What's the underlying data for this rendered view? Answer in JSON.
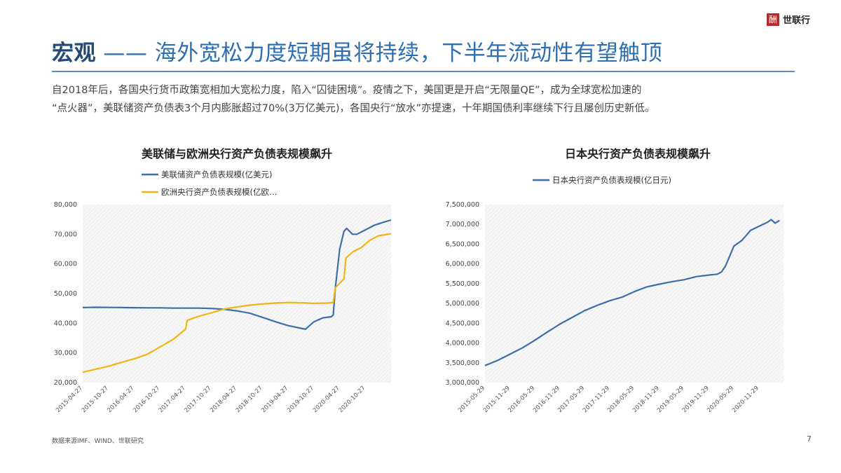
{
  "header": {
    "logo_mark": "酬",
    "logo_text": "世联行",
    "title_main": "宏观",
    "title_rest": " —— 海外宽松力度短期虽将持续，下半年流动性有望触顶"
  },
  "intro": {
    "line1": "自2018年后，各国央行货币政策宽相加大宽松力度，陷入“囚徒困境”。疫情之下，美国更是开启“无限量QE”，成为全球宽松加速的",
    "line2": "“点火器”，美联储资产负债表3个月内膨胀超过70%(3万亿美元)，各国央行“放水”亦提速，十年期国债利率继续下行且屡创历史新低。"
  },
  "footer": {
    "source": "数据来源IMF、WIND、世联研究",
    "page": "7"
  },
  "colors": {
    "fed": "#3d6ea8",
    "ecb": "#f2b313",
    "boj": "#3d6ea8",
    "title_dark": "#244a73",
    "title_light": "#2d6fb0"
  },
  "chart_data": [
    {
      "type": "line",
      "title": "美联储与欧洲央行资产负债表规模飙升",
      "legend_position": "top",
      "ylim": [
        20000,
        80000
      ],
      "y_ticks": [
        "20,000",
        "30,000",
        "40,000",
        "50,000",
        "60,000",
        "70,000",
        "80,000"
      ],
      "x_ticks": [
        "2015-04-27",
        "2015-10-27",
        "2016-04-27",
        "2016-10-27",
        "2017-04-27",
        "2017-10-27",
        "2018-04-27",
        "2018-10-27",
        "2019-04-27",
        "2019-10-27",
        "2020-04-27",
        "2020-10-27"
      ],
      "x_range": [
        "2015-04-27",
        "2021-04-27"
      ],
      "series": [
        {
          "name": "美联储资产负债表规模(亿美元)",
          "points": [
            [
              "2015-04-27",
              45300
            ],
            [
              "2015-07-27",
              45400
            ],
            [
              "2015-10-27",
              45350
            ],
            [
              "2016-01-27",
              45300
            ],
            [
              "2016-04-27",
              45250
            ],
            [
              "2016-07-27",
              45200
            ],
            [
              "2016-10-27",
              45200
            ],
            [
              "2017-01-27",
              45100
            ],
            [
              "2017-04-27",
              45100
            ],
            [
              "2017-07-27",
              45100
            ],
            [
              "2017-10-27",
              45000
            ],
            [
              "2018-01-27",
              44700
            ],
            [
              "2018-04-27",
              44200
            ],
            [
              "2018-07-27",
              43400
            ],
            [
              "2018-10-27",
              42000
            ],
            [
              "2019-01-27",
              40500
            ],
            [
              "2019-04-27",
              39200
            ],
            [
              "2019-07-27",
              38300
            ],
            [
              "2019-08-27",
              38000
            ],
            [
              "2019-10-27",
              40500
            ],
            [
              "2019-12-27",
              41800
            ],
            [
              "2020-02-27",
              42200
            ],
            [
              "2020-03-12",
              42800
            ],
            [
              "2020-03-27",
              52000
            ],
            [
              "2020-04-27",
              65000
            ],
            [
              "2020-05-27",
              71000
            ],
            [
              "2020-06-15",
              72000
            ],
            [
              "2020-07-27",
              70000
            ],
            [
              "2020-08-27",
              70000
            ],
            [
              "2020-10-27",
              71500
            ],
            [
              "2020-12-27",
              73000
            ],
            [
              "2021-02-27",
              74000
            ],
            [
              "2021-04-27",
              74800
            ]
          ]
        },
        {
          "name": "欧洲央行资产负债表规模(亿欧…",
          "points": [
            [
              "2015-04-27",
              23500
            ],
            [
              "2015-07-27",
              24500
            ],
            [
              "2015-10-27",
              25500
            ],
            [
              "2016-01-27",
              26800
            ],
            [
              "2016-04-27",
              28000
            ],
            [
              "2016-07-27",
              29500
            ],
            [
              "2016-10-27",
              32000
            ],
            [
              "2017-01-27",
              34500
            ],
            [
              "2017-04-27",
              38000
            ],
            [
              "2017-05-10",
              41000
            ],
            [
              "2017-07-27",
              42300
            ],
            [
              "2017-10-27",
              43500
            ],
            [
              "2018-01-27",
              44800
            ],
            [
              "2018-04-27",
              45500
            ],
            [
              "2018-07-27",
              46100
            ],
            [
              "2018-10-27",
              46500
            ],
            [
              "2019-01-27",
              46800
            ],
            [
              "2019-04-27",
              47000
            ],
            [
              "2019-07-27",
              46900
            ],
            [
              "2019-10-27",
              46700
            ],
            [
              "2020-01-27",
              46800
            ],
            [
              "2020-03-12",
              47000
            ],
            [
              "2020-03-27",
              52000
            ],
            [
              "2020-05-27",
              55000
            ],
            [
              "2020-06-10",
              62000
            ],
            [
              "2020-07-27",
              64000
            ],
            [
              "2020-09-27",
              65500
            ],
            [
              "2020-11-27",
              68000
            ],
            [
              "2021-01-27",
              69500
            ],
            [
              "2021-04-27",
              70200
            ]
          ]
        }
      ]
    },
    {
      "type": "line",
      "title": "日本央行资产负债表规模飙升",
      "legend_position": "top",
      "ylim": [
        3000000,
        7500000
      ],
      "y_ticks": [
        "3,000,000",
        "3,500,000",
        "4,000,000",
        "4,500,000",
        "5,000,000",
        "5,500,000",
        "6,000,000",
        "6,500,000",
        "7,000,000",
        "7,500,000"
      ],
      "x_ticks": [
        "2015-05-29",
        "2015-11-29",
        "2016-05-29",
        "2016-11-29",
        "2017-05-29",
        "2017-11-29",
        "2018-05-29",
        "2018-11-29",
        "2019-05-29",
        "2019-11-29",
        "2020-05-29",
        "2020-11-29"
      ],
      "x_range": [
        "2015-05-29",
        "2021-05-29"
      ],
      "series": [
        {
          "name": "日本央行资产负债表规模(亿日元)",
          "points": [
            [
              "2015-05-29",
              3430000
            ],
            [
              "2015-08-29",
              3560000
            ],
            [
              "2015-11-29",
              3720000
            ],
            [
              "2016-02-29",
              3880000
            ],
            [
              "2016-05-29",
              4070000
            ],
            [
              "2016-08-29",
              4280000
            ],
            [
              "2016-11-29",
              4480000
            ],
            [
              "2017-02-28",
              4650000
            ],
            [
              "2017-05-29",
              4820000
            ],
            [
              "2017-08-29",
              4950000
            ],
            [
              "2017-11-29",
              5070000
            ],
            [
              "2018-02-28",
              5160000
            ],
            [
              "2018-05-29",
              5300000
            ],
            [
              "2018-08-29",
              5420000
            ],
            [
              "2018-11-29",
              5490000
            ],
            [
              "2019-02-28",
              5550000
            ],
            [
              "2019-05-29",
              5600000
            ],
            [
              "2019-08-29",
              5680000
            ],
            [
              "2019-11-29",
              5720000
            ],
            [
              "2020-01-29",
              5740000
            ],
            [
              "2020-02-29",
              5800000
            ],
            [
              "2020-03-29",
              5950000
            ],
            [
              "2020-04-29",
              6200000
            ],
            [
              "2020-05-29",
              6450000
            ],
            [
              "2020-07-29",
              6600000
            ],
            [
              "2020-09-29",
              6850000
            ],
            [
              "2020-11-29",
              6950000
            ],
            [
              "2021-01-29",
              7050000
            ],
            [
              "2021-02-28",
              7120000
            ],
            [
              "2021-03-29",
              7030000
            ],
            [
              "2021-04-29",
              7100000
            ]
          ]
        }
      ]
    }
  ]
}
